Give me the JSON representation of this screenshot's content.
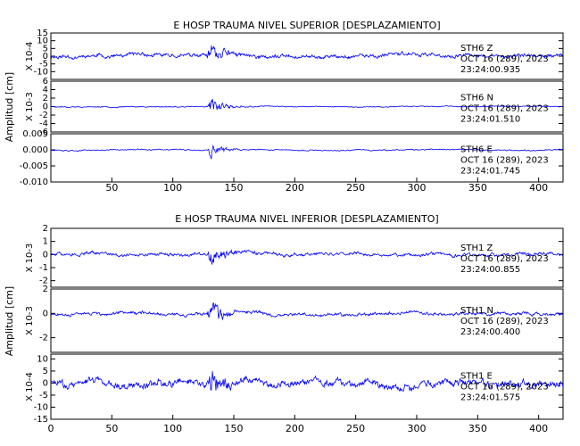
{
  "chart_data": [
    {
      "type": "line",
      "title": "E HOSP TRAUMA NIVEL SUPERIOR [DESPLAZAMIENTO]",
      "ylabel": "Amplitud [cm]",
      "xlim": [
        0,
        420
      ],
      "x_ticks": [
        50,
        100,
        150,
        200,
        250,
        300,
        350,
        400
      ],
      "line_color": "#0000ff",
      "panels": [
        {
          "scale_label": "X 10-4",
          "ylim": [
            -15,
            15
          ],
          "y_ticks": [
            -10,
            -5,
            0,
            5,
            10,
            15
          ],
          "station": "STH6  Z",
          "date": "OCT 16 (289), 2023",
          "time": "23:24:00.935",
          "noise_amp": 2.8,
          "event_amp": 11,
          "event_start": 128,
          "event_decay": 12,
          "seed": 11
        },
        {
          "scale_label": "X 10-3",
          "ylim": [
            -6,
            6
          ],
          "y_ticks": [
            -6,
            -4,
            -2,
            0,
            2,
            4,
            6
          ],
          "station": "STH6  N",
          "date": "OCT 16 (289), 2023",
          "time": "23:24:01.510",
          "noise_amp": 0.25,
          "event_amp": 4.2,
          "event_start": 128,
          "event_decay": 10,
          "seed": 23
        },
        {
          "scale_label": "",
          "ylim": [
            -0.01,
            0.005
          ],
          "y_ticks": [
            -0.01,
            -0.005,
            0.0,
            0.005
          ],
          "y_tick_labels": [
            "-0.010",
            "-0.005",
            "0.000",
            "0.005"
          ],
          "station": "STH6  E",
          "date": "OCT 16 (289), 2023",
          "time": "23:24:01.745",
          "noise_amp": 0.0004,
          "event_amp": 0.0048,
          "event_start": 128,
          "event_decay": 9,
          "seed": 37
        }
      ]
    },
    {
      "type": "line",
      "title": "E HOSP TRAUMA NIVEL INFERIOR [DESPLAZAMIENTO]",
      "ylabel": "Amplitud [cm]",
      "xlim": [
        0,
        420
      ],
      "x_ticks": [
        0,
        50,
        100,
        150,
        200,
        250,
        300,
        350,
        400
      ],
      "line_color": "#0000ff",
      "panels": [
        {
          "scale_label": "X 10-3",
          "ylim": [
            -2.5,
            2
          ],
          "y_ticks": [
            -2,
            -1,
            0,
            1,
            2
          ],
          "station": "STH1  Z",
          "date": "OCT 16 (289), 2023",
          "time": "23:24:00.855",
          "noise_amp": 0.3,
          "event_amp": 2.0,
          "event_start": 128,
          "event_decay": 9,
          "seed": 51
        },
        {
          "scale_label": "X 10-3",
          "ylim": [
            -3.2,
            2
          ],
          "y_ticks": [
            -2,
            0,
            2
          ],
          "station": "STH1  N",
          "date": "OCT 16 (289), 2023",
          "time": "23:24:00.400",
          "noise_amp": 0.3,
          "event_amp": 2.0,
          "event_start": 128,
          "event_decay": 10,
          "seed": 67
        },
        {
          "scale_label": "X 10-4",
          "ylim": [
            -15,
            12
          ],
          "y_ticks": [
            -15,
            -10,
            -5,
            0,
            5,
            10
          ],
          "station": "STH1  E",
          "date": "OCT 16 (289), 2023",
          "time": "23:24:01.575",
          "noise_amp": 3.5,
          "event_amp": 9,
          "event_start": 128,
          "event_decay": 14,
          "seed": 83
        }
      ]
    }
  ]
}
